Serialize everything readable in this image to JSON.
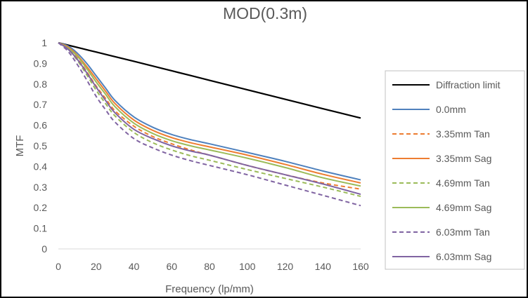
{
  "chart_data": {
    "type": "line",
    "title": "MOD(0.3m)",
    "xlabel": "Frequency (lp/mm)",
    "ylabel": "MTF",
    "xlim": [
      0,
      160
    ],
    "ylim": [
      0,
      1
    ],
    "xticks": [
      0,
      20,
      40,
      60,
      80,
      100,
      120,
      140,
      160
    ],
    "yticks": [
      0,
      0.1,
      0.2,
      0.3,
      0.4,
      0.5,
      0.6,
      0.7,
      0.8,
      0.9,
      1
    ],
    "grid": false,
    "legend_position": "right",
    "series": [
      {
        "name": "Diffraction limit",
        "color": "#000000",
        "dash": "solid",
        "x": [
          0,
          20,
          40,
          60,
          80,
          100,
          120,
          140,
          160
        ],
        "y": [
          1.0,
          0.955,
          0.91,
          0.864,
          0.818,
          0.772,
          0.726,
          0.68,
          0.635
        ]
      },
      {
        "name": "0.0mm",
        "color": "#4F81BD",
        "dash": "solid",
        "x": [
          0,
          5,
          10,
          15,
          20,
          25,
          30,
          40,
          50,
          60,
          70,
          80,
          100,
          120,
          140,
          160
        ],
        "y": [
          1.0,
          0.985,
          0.95,
          0.9,
          0.84,
          0.78,
          0.72,
          0.64,
          0.59,
          0.555,
          0.53,
          0.51,
          0.468,
          0.425,
          0.378,
          0.335
        ]
      },
      {
        "name": "3.35mm Tan",
        "color": "#ED7D31",
        "dash": "dashed",
        "x": [
          0,
          5,
          10,
          15,
          20,
          25,
          30,
          40,
          50,
          60,
          70,
          80,
          100,
          120,
          140,
          160
        ],
        "y": [
          1.0,
          0.975,
          0.925,
          0.86,
          0.79,
          0.73,
          0.67,
          0.595,
          0.545,
          0.51,
          0.48,
          0.455,
          0.405,
          0.36,
          0.32,
          0.29
        ]
      },
      {
        "name": "3.35mm Sag",
        "color": "#ED7D31",
        "dash": "solid",
        "x": [
          0,
          5,
          10,
          15,
          20,
          25,
          30,
          40,
          50,
          60,
          70,
          80,
          100,
          120,
          140,
          160
        ],
        "y": [
          1.0,
          0.98,
          0.94,
          0.885,
          0.825,
          0.765,
          0.705,
          0.625,
          0.575,
          0.54,
          0.515,
          0.495,
          0.455,
          0.41,
          0.362,
          0.32
        ]
      },
      {
        "name": "4.69mm Tan",
        "color": "#9BBB59",
        "dash": "dashed",
        "x": [
          0,
          5,
          10,
          15,
          20,
          25,
          30,
          40,
          50,
          60,
          70,
          80,
          100,
          120,
          140,
          160
        ],
        "y": [
          1.0,
          0.97,
          0.915,
          0.845,
          0.77,
          0.705,
          0.645,
          0.565,
          0.515,
          0.48,
          0.452,
          0.43,
          0.385,
          0.342,
          0.3,
          0.255
        ]
      },
      {
        "name": "4.69mm Sag",
        "color": "#9BBB59",
        "dash": "solid",
        "x": [
          0,
          5,
          10,
          15,
          20,
          25,
          30,
          40,
          50,
          60,
          70,
          80,
          100,
          120,
          140,
          160
        ],
        "y": [
          1.0,
          0.975,
          0.935,
          0.875,
          0.81,
          0.75,
          0.69,
          0.61,
          0.56,
          0.525,
          0.5,
          0.48,
          0.44,
          0.395,
          0.345,
          0.305
        ]
      },
      {
        "name": "6.03mm Tan",
        "color": "#8064A2",
        "dash": "dashed",
        "x": [
          0,
          5,
          10,
          15,
          20,
          25,
          30,
          40,
          50,
          60,
          70,
          80,
          100,
          120,
          140,
          160
        ],
        "y": [
          1.0,
          0.96,
          0.895,
          0.82,
          0.74,
          0.675,
          0.615,
          0.535,
          0.49,
          0.455,
          0.428,
          0.405,
          0.36,
          0.31,
          0.26,
          0.21
        ]
      },
      {
        "name": "6.03mm Sag",
        "color": "#8064A2",
        "dash": "solid",
        "x": [
          0,
          5,
          10,
          15,
          20,
          25,
          30,
          40,
          50,
          60,
          70,
          80,
          100,
          120,
          140,
          160
        ],
        "y": [
          1.0,
          0.97,
          0.92,
          0.855,
          0.785,
          0.72,
          0.66,
          0.58,
          0.535,
          0.5,
          0.475,
          0.455,
          0.405,
          0.36,
          0.315,
          0.265
        ]
      }
    ]
  }
}
